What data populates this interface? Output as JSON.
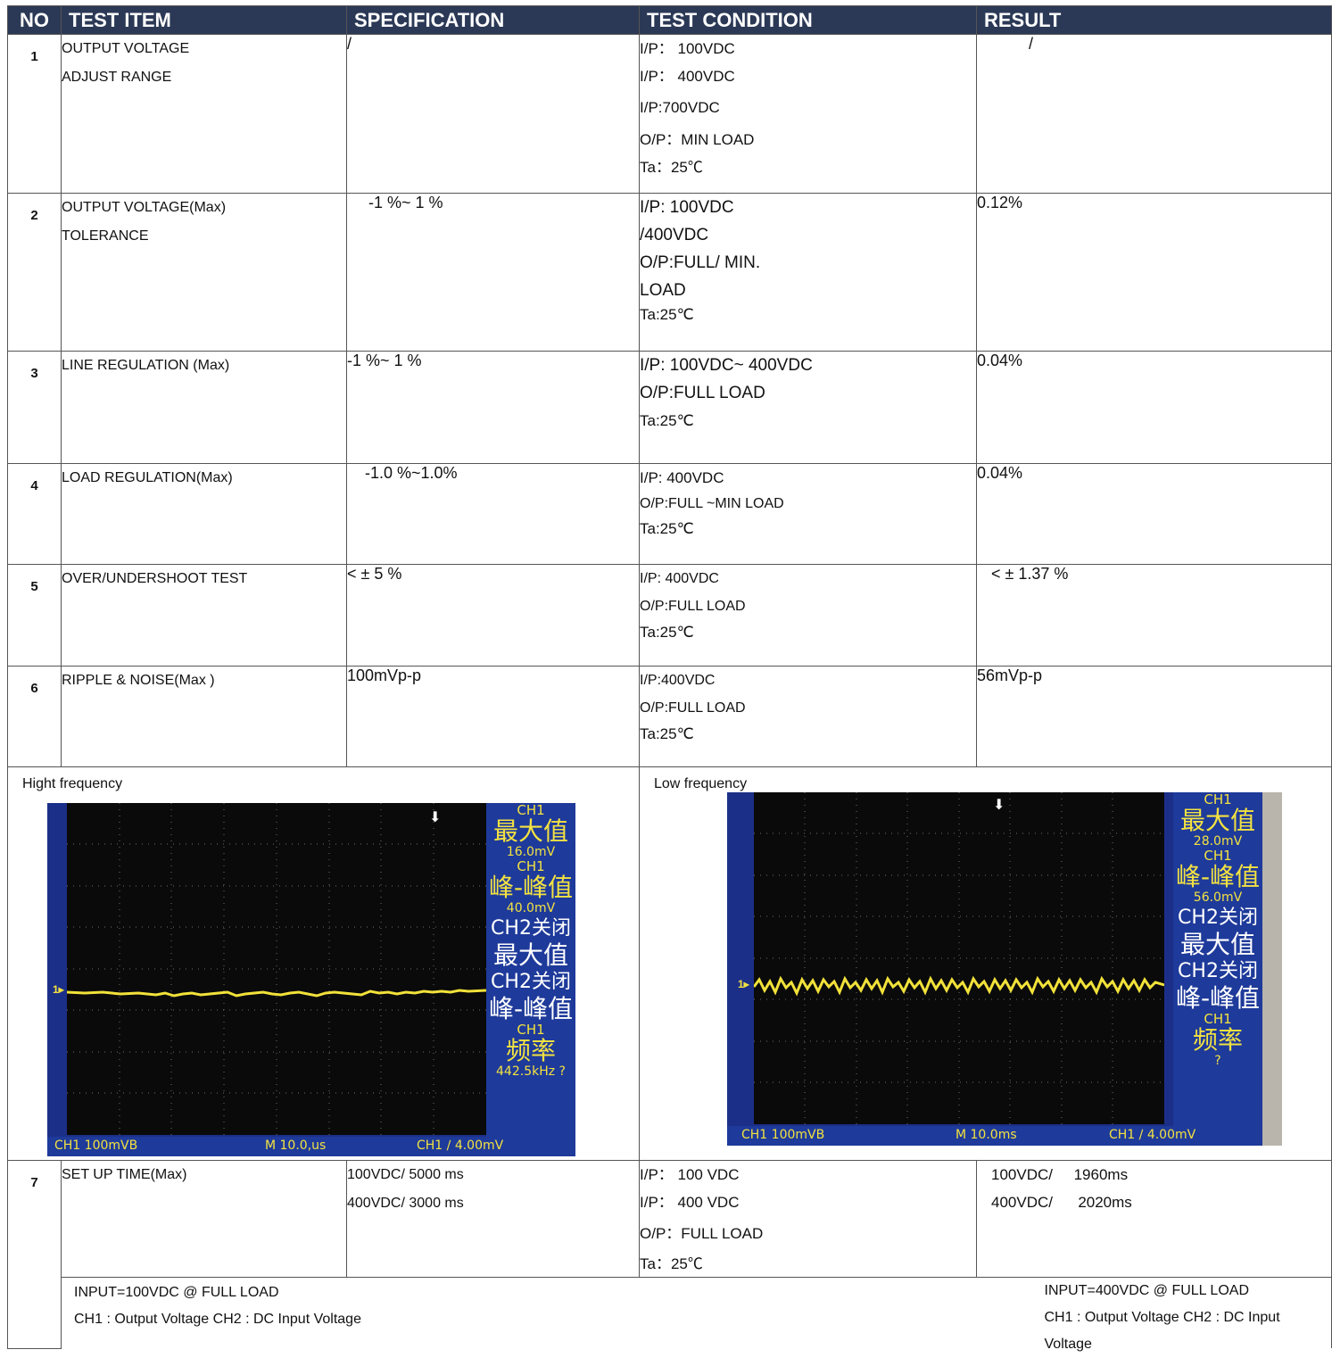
{
  "headers": {
    "no": "NO",
    "test_item": "TEST ITEM",
    "specification": "SPECIFICATION",
    "test_condition": "TEST CONDITION",
    "result": "RESULT"
  },
  "rows": [
    {
      "no": "1",
      "item": [
        "OUTPUT VOLTAGE",
        "ADJUST RANGE"
      ],
      "spec": "/",
      "condition": [
        "I/P： 100VDC",
        "I/P： 400VDC",
        "I/P:700VDC",
        "O/P：MIN LOAD",
        "Ta：25℃"
      ],
      "result": "/"
    },
    {
      "no": "2",
      "item": [
        "OUTPUT VOLTAGE(Max)",
        "TOLERANCE"
      ],
      "spec": "-1 %~  1  %",
      "condition": [
        "I/P: 100VDC",
        "/400VDC",
        "O/P:FULL/ MIN.",
        "LOAD",
        "Ta:25℃"
      ],
      "result": "0.12%"
    },
    {
      "no": "3",
      "item": [
        "LINE REGULATION (Max)"
      ],
      "spec": "-1 %~  1  %",
      "condition": [
        "I/P: 100VDC~ 400VDC",
        "O/P:FULL LOAD",
        "Ta:25℃"
      ],
      "result": "0.04%"
    },
    {
      "no": "4",
      "item": [
        "LOAD REGULATION(Max)"
      ],
      "spec": "-1.0 %~1.0%",
      "condition": [
        "I/P: 400VDC",
        "O/P:FULL ~MIN LOAD",
        "Ta:25℃"
      ],
      "result": "0.04%"
    },
    {
      "no": "5",
      "item": [
        "OVER/UNDERSHOOT TEST"
      ],
      "spec": "< ±  5 %",
      "condition": [
        "I/P: 400VDC",
        "O/P:FULL LOAD",
        "Ta:25℃"
      ],
      "result": "< ±  1.37 %"
    },
    {
      "no": "6",
      "item": [
        "RIPPLE & NOISE(Max )"
      ],
      "spec": "100mVp-p",
      "condition": [
        "I/P:400VDC",
        "O/P:FULL LOAD",
        "Ta:25℃"
      ],
      "result": "56mVp-p"
    }
  ],
  "ripple_images": {
    "high": {
      "label": "Hight  frequency",
      "side": [
        "CH1",
        "最大值",
        "16.0mV",
        "CH1",
        "峰-峰值",
        "40.0mV",
        "CH2关闭",
        "最大值",
        "CH2关闭",
        "峰-峰值",
        "CH1",
        "频率",
        "442.5kHz ?"
      ],
      "bottom_left": "CH1  100mVB",
      "bottom_mid": "M 10.0,us",
      "bottom_right": "CH1  ∕  4.00mV"
    },
    "low": {
      "label": "Low  frequency",
      "side": [
        "CH1",
        "最大值",
        "28.0mV",
        "CH1",
        "峰-峰值",
        "56.0mV",
        "CH2关闭",
        "最大值",
        "CH2关闭",
        "峰-峰值",
        "CH1",
        "频率",
        "?"
      ],
      "bottom_left": "CH1  100mVB",
      "bottom_mid": "M 10.0ms",
      "bottom_right": "CH1  ∕  4.00mV"
    }
  },
  "row7": {
    "no": "7",
    "item": "SET UP TIME(Max)",
    "spec": [
      "100VDC/ 5000 ms",
      "400VDC/ 3000 ms"
    ],
    "condition": [
      "I/P： 100 VDC",
      "I/P： 400  VDC",
      "O/P：FULL  LOAD",
      "Ta：25℃"
    ],
    "result": [
      "100VDC/     1960ms",
      "400VDC/      2020ms"
    ]
  },
  "row7_notes": {
    "left": [
      "INPUT=100VDC @ FULL LOAD",
      "CH1 : Output Voltage CH2 : DC Input Voltage"
    ],
    "right": [
      "INPUT=400VDC @ FULL LOAD",
      "CH1 : Output Voltage CH2 : DC Input Voltage"
    ]
  }
}
